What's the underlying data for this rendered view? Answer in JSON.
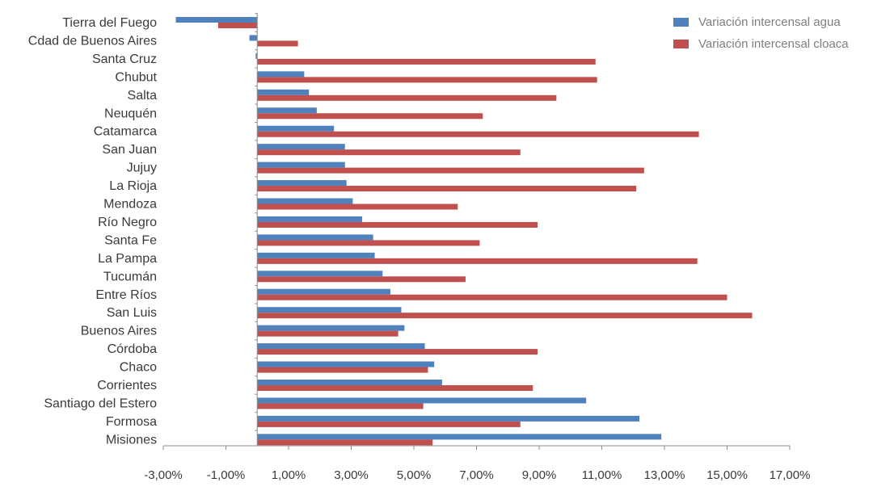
{
  "chart_data": {
    "type": "bar",
    "orientation": "horizontal",
    "categories": [
      "Tierra del Fuego",
      "Cdad de Buenos Aires",
      "Santa Cruz",
      "Chubut",
      "Salta",
      "Neuquén",
      "Catamarca",
      "San Juan",
      "Jujuy",
      "La Rioja",
      "Mendoza",
      "Río Negro",
      "Santa Fe",
      "La Pampa",
      "Tucumán",
      "Entre Ríos",
      "San Luis",
      "Buenos Aires",
      "Córdoba",
      "Chaco",
      "Corrientes",
      "Santiago del Estero",
      "Formosa",
      "Misiones"
    ],
    "series": [
      {
        "name": "Variación intercensal agua",
        "color": "#4f81bd",
        "values": [
          -2.6,
          -0.25,
          -0.05,
          1.5,
          1.65,
          1.9,
          2.45,
          2.8,
          2.8,
          2.85,
          3.05,
          3.35,
          3.7,
          3.75,
          4.0,
          4.25,
          4.6,
          4.7,
          5.35,
          5.65,
          5.9,
          10.5,
          12.2,
          12.9
        ]
      },
      {
        "name": "Variación intercensal cloaca",
        "color": "#c0504d",
        "values": [
          -1.25,
          1.3,
          10.8,
          10.85,
          9.55,
          7.2,
          14.1,
          8.4,
          12.35,
          12.1,
          6.4,
          8.95,
          7.1,
          14.05,
          6.65,
          15.0,
          15.8,
          4.5,
          8.95,
          5.45,
          8.8,
          5.3,
          8.4,
          5.6
        ]
      }
    ],
    "xlim": [
      -3,
      17
    ],
    "xticks": [
      -3,
      -1,
      1,
      3,
      5,
      7,
      9,
      11,
      13,
      15,
      17
    ],
    "xtick_labels": [
      "-3,00%",
      "-1,00%",
      "1,00%",
      "3,00%",
      "5,00%",
      "7,00%",
      "9,00%",
      "11,00%",
      "13,00%",
      "15,00%",
      "17,00%"
    ],
    "title": "",
    "xlabel": "",
    "ylabel": "",
    "grid": false,
    "legend_position": "top-right"
  }
}
